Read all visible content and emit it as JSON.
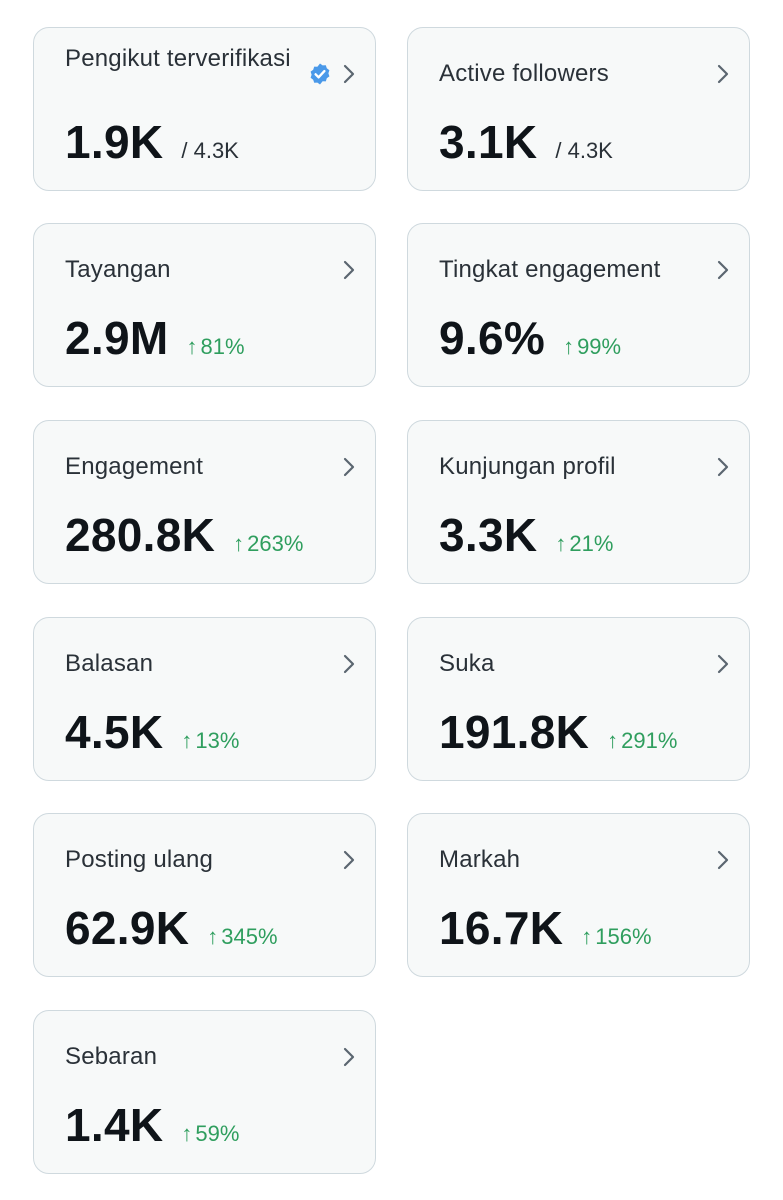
{
  "colors": {
    "card_background": "#f7f9f9",
    "card_border": "#cfd9de",
    "positive_change": "#2f9e5e",
    "verified_badge": "#4a99e9",
    "chevron": "#5b6670"
  },
  "cards": [
    {
      "label": "Pengikut terverifikasi",
      "value": "1.9K",
      "total": "/ 4.3K",
      "verified_icon": "verified-badge-icon"
    },
    {
      "label": "Active followers",
      "value": "3.1K",
      "total": "/ 4.3K"
    },
    {
      "label": "Tayangan",
      "value": "2.9M",
      "change": "81%"
    },
    {
      "label": "Tingkat engagement",
      "value": "9.6%",
      "change": "99%"
    },
    {
      "label": "Engagement",
      "value": "280.8K",
      "change": "263%"
    },
    {
      "label": "Kunjungan profil",
      "value": "3.3K",
      "change": "21%"
    },
    {
      "label": "Balasan",
      "value": "4.5K",
      "change": "13%"
    },
    {
      "label": "Suka",
      "value": "191.8K",
      "change": "291%"
    },
    {
      "label": "Posting ulang",
      "value": "62.9K",
      "change": "345%"
    },
    {
      "label": "Markah",
      "value": "16.7K",
      "change": "156%"
    },
    {
      "label": "Sebaran",
      "value": "1.4K",
      "change": "59%"
    }
  ],
  "icons": {
    "chevron": "chevron-right-icon",
    "arrow": "arrow-up-icon"
  }
}
